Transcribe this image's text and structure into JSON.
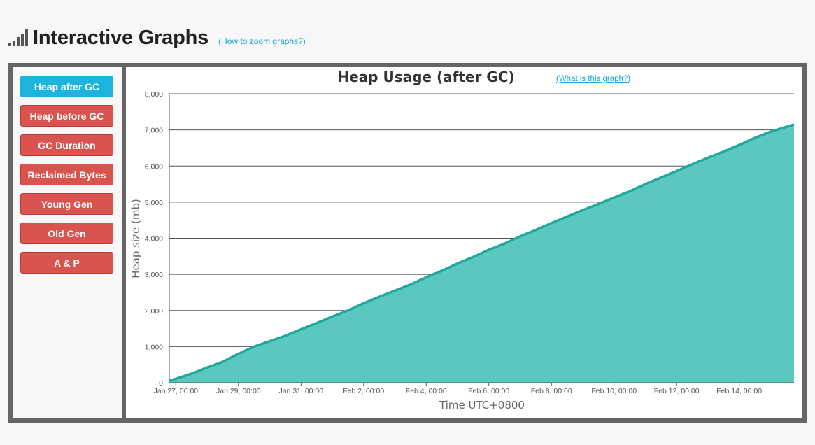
{
  "header": {
    "title": "Interactive Graphs",
    "zoom_link": "(How to zoom graphs?)",
    "icon": "signal-bars-icon"
  },
  "sidebar": {
    "buttons": [
      {
        "label": "Heap after GC",
        "active": true
      },
      {
        "label": "Heap before GC",
        "active": false
      },
      {
        "label": "GC Duration",
        "active": false
      },
      {
        "label": "Reclaimed Bytes",
        "active": false
      },
      {
        "label": "Young Gen",
        "active": false
      },
      {
        "label": "Old Gen",
        "active": false
      },
      {
        "label": "A & P",
        "active": false
      }
    ]
  },
  "colors": {
    "accent": "#1ab4dc",
    "button_red": "#d9534f",
    "area_fill": "#5bc8c0",
    "line": "#1fa89c"
  },
  "chart": {
    "what_link": "(What is this graph?)"
  },
  "chart_data": {
    "type": "area",
    "title": "Heap Usage (after GC)",
    "xlabel": "Time UTC+0800",
    "ylabel": "Heap size (mb)",
    "ylim": [
      0,
      8000
    ],
    "yticks": [
      0,
      1000,
      2000,
      3000,
      4000,
      5000,
      6000,
      7000,
      8000
    ],
    "ytick_labels": [
      "0",
      "1,000",
      "2,000",
      "3,000",
      "4,000",
      "5,000",
      "6,000",
      "7,000",
      "8,000"
    ],
    "xlim": [
      "Jan 26, 19:00",
      "Feb 15, 18:00"
    ],
    "xticks": [
      "Jan 27, 00:00",
      "Jan 29, 00:00",
      "Jan 31, 00:00",
      "Feb 2, 00:00",
      "Feb 4, 00:00",
      "Feb 6, 00:00",
      "Feb 8, 00:00",
      "Feb 10, 00:00",
      "Feb 12, 00:00",
      "Feb 14, 00:00"
    ],
    "grid": true,
    "series": [
      {
        "x": [
          "Jan 26, 19:00",
          "Jan 27, 12:00",
          "Jan 28, 00:00",
          "Jan 28, 12:00",
          "Jan 29, 00:00",
          "Jan 29, 12:00",
          "Jan 30, 00:00",
          "Jan 30, 12:00",
          "Jan 31, 00:00",
          "Jan 31, 12:00",
          "Feb 1, 00:00",
          "Feb 1, 12:00",
          "Feb 2, 00:00",
          "Feb 2, 12:00",
          "Feb 3, 00:00",
          "Feb 3, 12:00",
          "Feb 4, 00:00",
          "Feb 4, 12:00",
          "Feb 5, 00:00",
          "Feb 5, 12:00",
          "Feb 6, 00:00",
          "Feb 6, 12:00",
          "Feb 7, 00:00",
          "Feb 7, 12:00",
          "Feb 8, 00:00",
          "Feb 8, 12:00",
          "Feb 9, 00:00",
          "Feb 9, 12:00",
          "Feb 10, 00:00",
          "Feb 10, 12:00",
          "Feb 11, 00:00",
          "Feb 11, 12:00",
          "Feb 12, 00:00",
          "Feb 12, 12:00",
          "Feb 13, 00:00",
          "Feb 13, 12:00",
          "Feb 14, 00:00",
          "Feb 14, 12:00",
          "Feb 15, 00:00",
          "Feb 15, 18:00"
        ],
        "values": [
          50,
          250,
          420,
          580,
          800,
          1000,
          1150,
          1300,
          1480,
          1650,
          1830,
          2000,
          2200,
          2380,
          2550,
          2720,
          2920,
          3100,
          3300,
          3480,
          3680,
          3850,
          4050,
          4230,
          4420,
          4600,
          4780,
          4950,
          5130,
          5300,
          5500,
          5680,
          5860,
          6050,
          6230,
          6400,
          6580,
          6780,
          6950,
          7150
        ]
      }
    ]
  }
}
